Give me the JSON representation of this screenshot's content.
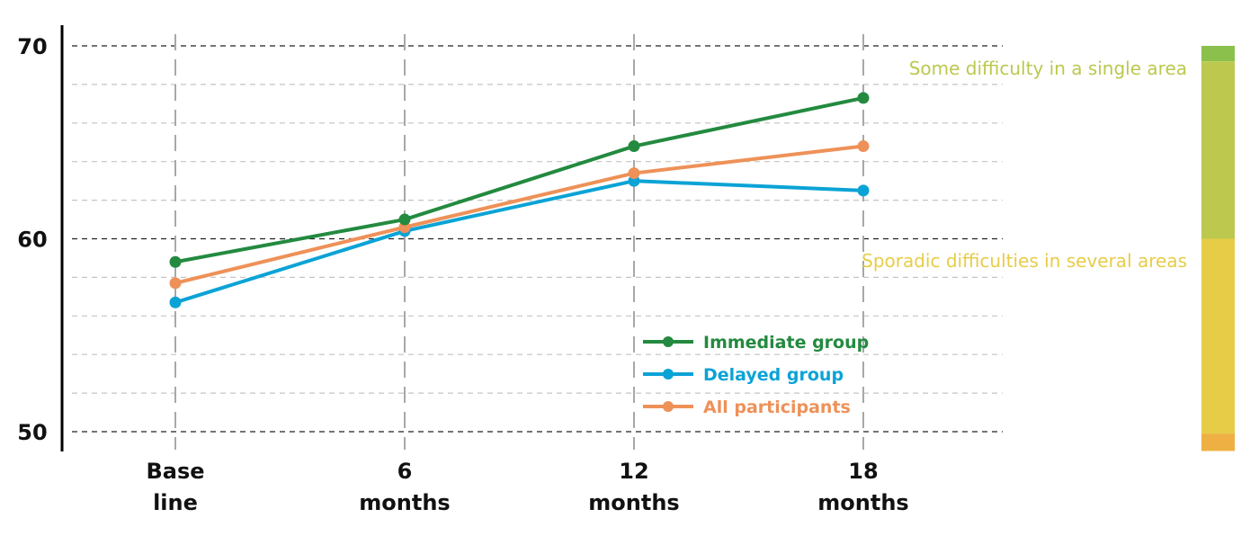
{
  "chart_data": {
    "type": "line",
    "categories": [
      [
        "Base",
        "line"
      ],
      [
        "6",
        "months"
      ],
      [
        "12",
        "months"
      ],
      [
        "18",
        "months"
      ]
    ],
    "series": [
      {
        "name": "Immediate group",
        "color": "#238a3f",
        "values": [
          58.8,
          61.0,
          64.8,
          67.3
        ]
      },
      {
        "name": "Delayed group",
        "color": "#0ba3d6",
        "values": [
          56.7,
          60.4,
          63.0,
          62.5
        ]
      },
      {
        "name": "All participants",
        "color": "#ee9158",
        "values": [
          57.7,
          60.6,
          63.4,
          64.8
        ]
      }
    ],
    "ylim": [
      50,
      70
    ],
    "yticks": [
      50,
      60,
      70
    ],
    "grid": true,
    "legend": "bottom-right",
    "bands": [
      {
        "label": "Some difficulty in a single area",
        "color": "#bcc84e",
        "range": [
          60,
          69.2
        ]
      },
      {
        "label": "Sporadic difficulties in several areas",
        "color": "#e7cc48",
        "range": [
          49,
          60
        ]
      }
    ],
    "band_bar_colors": [
      {
        "color": "#8cc04d",
        "range": [
          69.2,
          70
        ]
      },
      {
        "color": "#bcc84e",
        "range": [
          60,
          69.2
        ]
      },
      {
        "color": "#e7cc48",
        "range": [
          49.9,
          60
        ]
      },
      {
        "color": "#eeb042",
        "range": [
          49,
          49.9
        ]
      }
    ]
  }
}
